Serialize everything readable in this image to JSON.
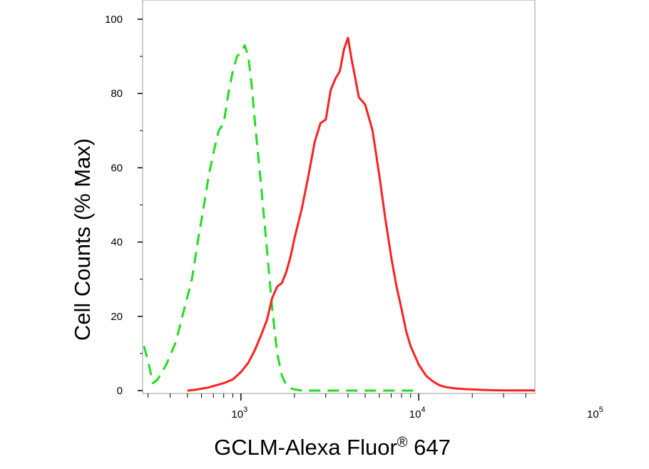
{
  "chart_data": {
    "type": "line",
    "xlabel": "GCLM-Alexa Fluor",
    "xlabel_superscript": "®",
    "xlabel_suffix": " 647",
    "ylabel": "Cell Counts (% Max)",
    "xscale": "log",
    "xlim": [
      280,
      45000
    ],
    "ylim": [
      0,
      100
    ],
    "y_ticks": [
      0,
      20,
      40,
      60,
      80,
      100
    ],
    "x_tick_labels": [
      {
        "value": 1000,
        "base": "10",
        "exp": "3"
      },
      {
        "value": 10000,
        "base": "10",
        "exp": "4"
      },
      {
        "value": 100000,
        "base": "10",
        "exp": "5"
      }
    ],
    "grid": false,
    "series": [
      {
        "color": "#22dd22",
        "dash": "dashed",
        "x": [
          285,
          300,
          320,
          340,
          380,
          430,
          480,
          530,
          580,
          620,
          660,
          700,
          750,
          800,
          850,
          900,
          950,
          1000,
          1050,
          1100,
          1150,
          1200,
          1300,
          1400,
          1500,
          1600,
          1700,
          1800,
          1900,
          2000,
          2200,
          3000,
          10000
        ],
        "y": [
          12,
          8,
          2,
          3,
          7,
          13,
          22,
          30,
          42,
          50,
          58,
          64,
          70,
          72,
          80,
          86,
          90,
          91,
          93,
          90,
          82,
          72,
          55,
          38,
          22,
          10,
          4,
          1.5,
          0.7,
          0.3,
          0,
          0,
          0
        ]
      },
      {
        "color": "#ff2020",
        "dash": "solid",
        "x": [
          500,
          550,
          600,
          650,
          700,
          800,
          900,
          1000,
          1100,
          1200,
          1300,
          1400,
          1500,
          1600,
          1700,
          1800,
          1900,
          2000,
          2200,
          2400,
          2600,
          2800,
          3000,
          3200,
          3400,
          3600,
          3800,
          4000,
          4200,
          4400,
          4600,
          5000,
          5500,
          6000,
          6500,
          7000,
          7500,
          8000,
          8500,
          9000,
          10000,
          11000,
          12000,
          13000,
          14000,
          16000,
          18000,
          20000,
          23000,
          26000,
          30000,
          45000
        ],
        "y": [
          0,
          0.2,
          0.5,
          0.8,
          1.2,
          2,
          3,
          5,
          7.5,
          11,
          15,
          19,
          25,
          28,
          29,
          32,
          36,
          41,
          49,
          58,
          67,
          72,
          73,
          81,
          84,
          86,
          92,
          95,
          89,
          84,
          79,
          77,
          70,
          58,
          46,
          36,
          28,
          22,
          16,
          12,
          7,
          4,
          2.5,
          1.5,
          1,
          0.6,
          0.4,
          0.3,
          0.2,
          0.1,
          0.05,
          0.05
        ]
      }
    ]
  }
}
